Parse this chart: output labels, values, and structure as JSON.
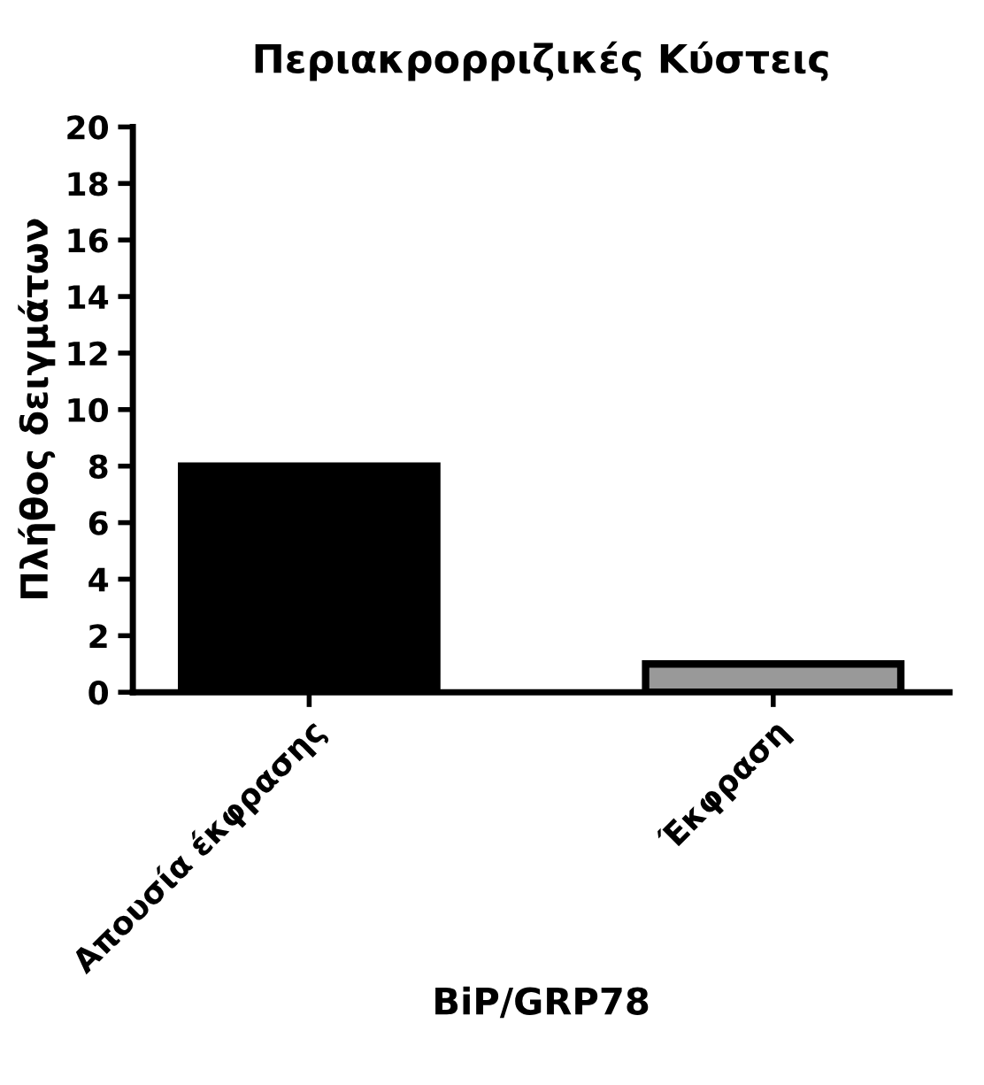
{
  "chart_data": {
    "type": "bar",
    "title": "Περιακρορριζικές Κύστεις",
    "xlabel": "BiP/GRP78",
    "ylabel": "Πλήθος δειγμάτων",
    "categories": [
      "Απουσία έκφρασης",
      "Έκφραση"
    ],
    "values": [
      8,
      1
    ],
    "colors": [
      "#000000",
      "#999999"
    ],
    "ylim": [
      0,
      20
    ],
    "yticks": [
      0,
      2,
      4,
      6,
      8,
      10,
      12,
      14,
      16,
      18,
      20
    ],
    "grid": false,
    "legend": false
  }
}
